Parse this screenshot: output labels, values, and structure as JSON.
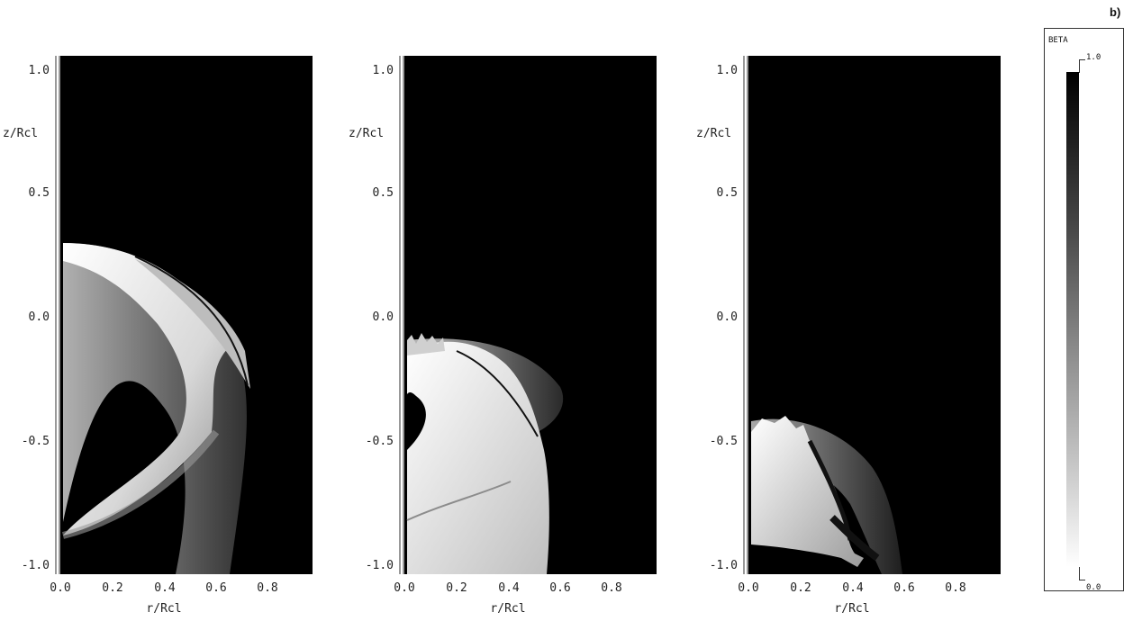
{
  "figure_label": "b)",
  "axes": {
    "x_title": "r/Rcl",
    "y_title": "z/Rcl",
    "x_ticks": [
      "0.0",
      "0.2",
      "0.4",
      "0.6",
      "0.8"
    ],
    "y_ticks": [
      "1.0",
      "0.5",
      "0.0",
      "-0.5",
      "-1.0"
    ]
  },
  "colorbar": {
    "title": "BETA",
    "max_label": "1.0",
    "min_label": "0.0"
  },
  "panels": [
    {
      "name": "panel-1"
    },
    {
      "name": "panel-2"
    },
    {
      "name": "panel-3"
    }
  ],
  "colors": {
    "background": "#000000",
    "structure_light": "#f2f2f2",
    "structure_mid": "#9a9a9a"
  }
}
